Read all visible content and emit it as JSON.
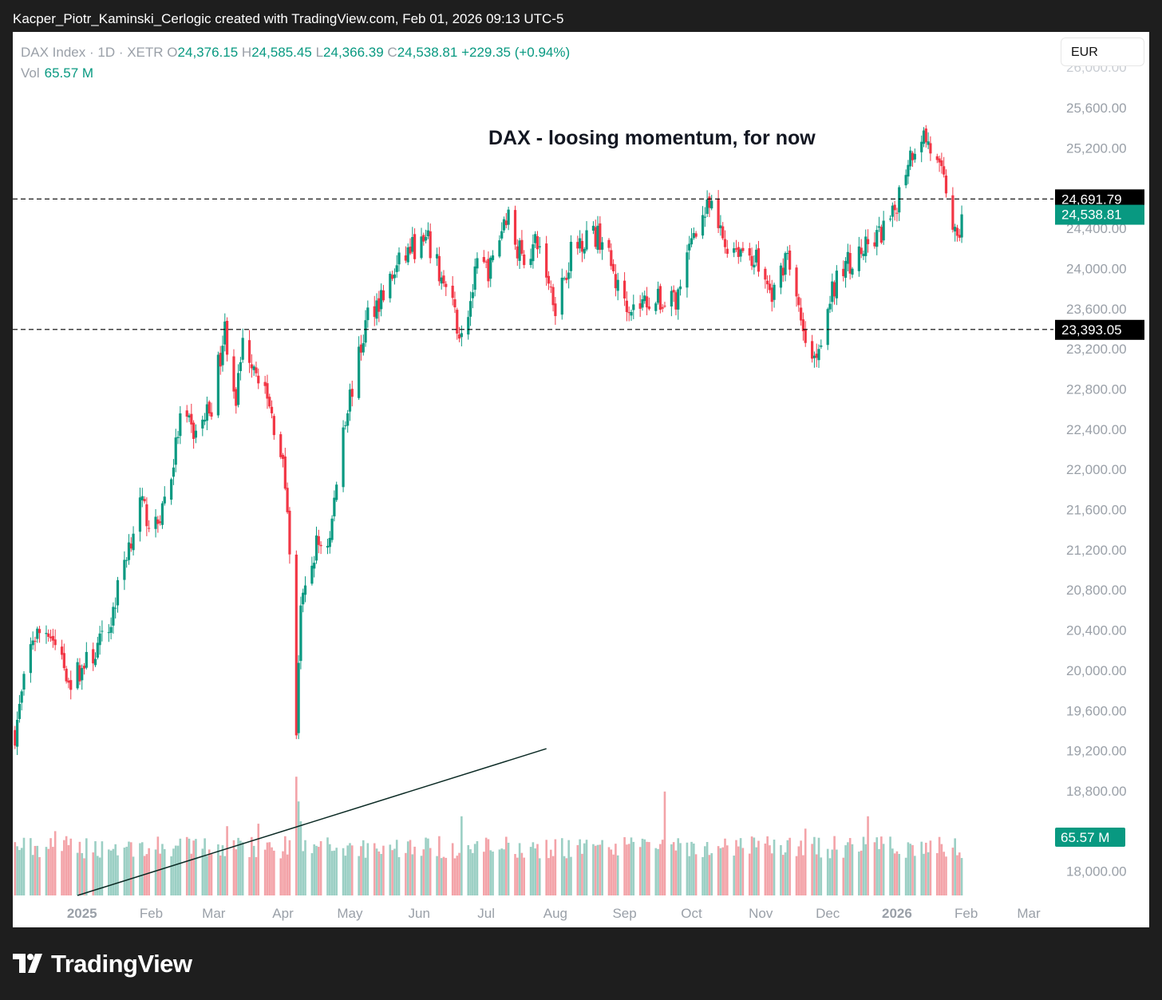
{
  "header": {
    "attribution": "Kacper_Piotr_Kaminski_Cerlogic created with TradingView.com, Feb 01, 2026 09:13 UTC-5"
  },
  "symbol": {
    "name": "DAX Index · 1D · XETR",
    "o_label": "O",
    "open": "24,376.15",
    "h_label": "H",
    "high": "24,585.45",
    "l_label": "L",
    "low": "24,366.39",
    "c_label": "C",
    "close": "24,538.81",
    "change": "+229.35 (+0.94%)",
    "vol_label": "Vol",
    "vol": "65.57 M"
  },
  "currency": "EUR",
  "footer": {
    "brand": "TradingView"
  },
  "colors": {
    "up": "#089981",
    "down": "#f23645",
    "up_vol": "#9bcfc4",
    "down_vol": "#f3a3a8",
    "background": "#1e1e1e"
  },
  "chart_data": {
    "type": "candlestick",
    "title": "DAX - loosing momentum, for now",
    "y_axis": {
      "ticks": [
        "25,600.00",
        "25,200.00",
        "24,400.00",
        "24,000.00",
        "23,600.00",
        "23,200.00",
        "22,800.00",
        "22,400.00",
        "22,000.00",
        "21,600.00",
        "21,200.00",
        "20,800.00",
        "20,400.00",
        "20,000.00",
        "19,600.00",
        "19,200.00",
        "18,800.00",
        "18,000.00"
      ],
      "range": [
        17600,
        26000
      ]
    },
    "x_axis": {
      "ticks": [
        {
          "label": "2025",
          "bold": true
        },
        {
          "label": "Feb"
        },
        {
          "label": "Mar"
        },
        {
          "label": "Apr"
        },
        {
          "label": "May"
        },
        {
          "label": "Jun"
        },
        {
          "label": "Jul"
        },
        {
          "label": "Aug"
        },
        {
          "label": "Sep"
        },
        {
          "label": "Oct"
        },
        {
          "label": "Nov"
        },
        {
          "label": "Dec"
        },
        {
          "label": "2026",
          "bold": true
        },
        {
          "label": "Feb"
        },
        {
          "label": "Mar"
        }
      ]
    },
    "horizontal_levels": [
      {
        "value": 24691.79,
        "label": "24,691.79"
      },
      {
        "value": 23393.05,
        "label": "23,393.05"
      }
    ],
    "last_price": {
      "value": 24538.81,
      "label": "24,538.81"
    },
    "volume_badge": "65.57 M",
    "trendline": {
      "from": [
        "2024-12-30",
        17600
      ],
      "to": [
        "2025-07-28",
        19220
      ]
    },
    "anchors": [
      [
        "2024-12-02",
        19380
      ],
      [
        "2024-12-10",
        20330
      ],
      [
        "2024-12-17",
        20420
      ],
      [
        "2024-12-20",
        20250
      ],
      [
        "2024-12-27",
        19900
      ],
      [
        "2025-01-06",
        20150
      ],
      [
        "2025-01-13",
        20400
      ],
      [
        "2025-01-20",
        21100
      ],
      [
        "2025-01-27",
        21650
      ],
      [
        "2025-02-03",
        21400
      ],
      [
        "2025-02-10",
        21950
      ],
      [
        "2025-02-14",
        22500
      ],
      [
        "2025-02-21",
        22350
      ],
      [
        "2025-02-28",
        22650
      ],
      [
        "2025-03-06",
        23400
      ],
      [
        "2025-03-11",
        22700
      ],
      [
        "2025-03-14",
        23250
      ],
      [
        "2025-03-20",
        23050
      ],
      [
        "2025-03-26",
        22600
      ],
      [
        "2025-03-31",
        22200
      ],
      [
        "2025-04-03",
        21650
      ],
      [
        "2025-04-07",
        19400
      ],
      [
        "2025-04-09",
        20550
      ],
      [
        "2025-04-11",
        20750
      ],
      [
        "2025-04-16",
        21250
      ],
      [
        "2025-04-22",
        21300
      ],
      [
        "2025-04-28",
        22450
      ],
      [
        "2025-05-05",
        23100
      ],
      [
        "2025-05-09",
        23550
      ],
      [
        "2025-05-16",
        23750
      ],
      [
        "2025-05-22",
        24000
      ],
      [
        "2025-05-28",
        24200
      ],
      [
        "2025-06-05",
        24250
      ],
      [
        "2025-06-11",
        23900
      ],
      [
        "2025-06-16",
        23600
      ],
      [
        "2025-06-20",
        23300
      ],
      [
        "2025-06-27",
        24000
      ],
      [
        "2025-07-03",
        24000
      ],
      [
        "2025-07-10",
        24550
      ],
      [
        "2025-07-17",
        24100
      ],
      [
        "2025-07-24",
        24250
      ],
      [
        "2025-08-01",
        23650
      ],
      [
        "2025-08-08",
        24150
      ],
      [
        "2025-08-15",
        24350
      ],
      [
        "2025-08-22",
        24300
      ],
      [
        "2025-08-29",
        23800
      ],
      [
        "2025-09-05",
        23600
      ],
      [
        "2025-09-12",
        23700
      ],
      [
        "2025-09-19",
        23650
      ],
      [
        "2025-09-26",
        23750
      ],
      [
        "2025-10-02",
        24400
      ],
      [
        "2025-10-09",
        24600
      ],
      [
        "2025-10-16",
        24250
      ],
      [
        "2025-10-23",
        24200
      ],
      [
        "2025-10-30",
        24100
      ],
      [
        "2025-11-06",
        23700
      ],
      [
        "2025-11-13",
        24200
      ],
      [
        "2025-11-20",
        23300
      ],
      [
        "2025-11-25",
        23100
      ],
      [
        "2025-12-02",
        23700
      ],
      [
        "2025-12-09",
        24050
      ],
      [
        "2025-12-16",
        24150
      ],
      [
        "2025-12-23",
        24300
      ],
      [
        "2025-12-30",
        24500
      ],
      [
        "2026-01-06",
        25100
      ],
      [
        "2026-01-12",
        25350
      ],
      [
        "2026-01-15",
        25250
      ],
      [
        "2026-01-20",
        24950
      ],
      [
        "2026-01-23",
        24800
      ],
      [
        "2026-01-28",
        24200
      ],
      [
        "2026-01-30",
        24538.81
      ]
    ],
    "volume_spikes": [
      [
        "2024-12-20",
        1.3
      ],
      [
        "2025-03-07",
        1.4
      ],
      [
        "2025-03-21",
        1.45
      ],
      [
        "2025-04-07",
        2.4
      ],
      [
        "2025-04-08",
        1.9
      ],
      [
        "2025-04-09",
        1.5
      ],
      [
        "2025-06-20",
        1.6
      ],
      [
        "2025-09-19",
        2.1
      ],
      [
        "2025-11-21",
        1.35
      ],
      [
        "2025-12-19",
        1.6
      ]
    ]
  }
}
